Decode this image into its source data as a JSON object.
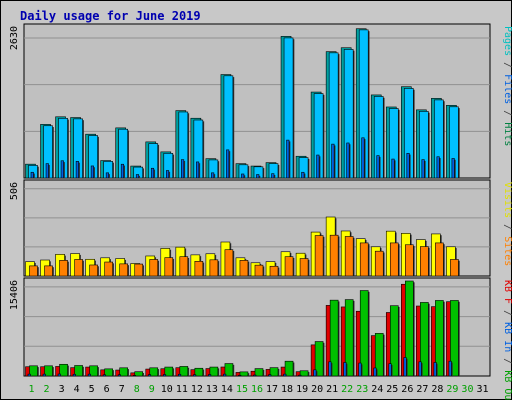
{
  "chart_data": {
    "type": "bar",
    "title": "Daily usage for June 2019",
    "days": [
      "1",
      "2",
      "3",
      "4",
      "5",
      "6",
      "7",
      "8",
      "9",
      "10",
      "11",
      "12",
      "13",
      "14",
      "15",
      "16",
      "17",
      "18",
      "19",
      "20",
      "21",
      "22",
      "23",
      "24",
      "25",
      "26",
      "27",
      "28",
      "29",
      "30",
      "31"
    ],
    "weekend_days": [
      "1",
      "2",
      "8",
      "9",
      "15",
      "16",
      "22",
      "23",
      "29",
      "30"
    ],
    "panels": [
      {
        "id": "hits-files-pages",
        "ymax": 2630,
        "ymax_label": "2630",
        "legend": [
          {
            "text": "Pages",
            "color": "#00c0c0"
          },
          {
            "text": " / ",
            "color": "#404040"
          },
          {
            "text": "Files",
            "color": "#0060e0"
          },
          {
            "text": " / ",
            "color": "#404040"
          },
          {
            "text": "Hits",
            "color": "#008040"
          }
        ],
        "series": [
          {
            "name": "Hits",
            "color": "#00a0a0",
            "values": [
              241,
              934,
              1066,
              1053,
              763,
              304,
              873,
              208,
              629,
              455,
              1174,
              1041,
              337,
              1802,
              250,
              208,
              268,
              2467,
              379,
              1497,
              2201,
              2269,
              2600,
              1447,
              1237,
              1590,
              1187,
              1387,
              1266,
              0,
              0
            ]
          },
          {
            "name": "Files",
            "color": "#0060e0",
            "values": [
              100,
              250,
              300,
              290,
              210,
              90,
              240,
              60,
              170,
              130,
              320,
              280,
              90,
              490,
              70,
              60,
              75,
              660,
              100,
              400,
              590,
              610,
              700,
              390,
              330,
              430,
              320,
              370,
              340,
              0,
              0
            ]
          },
          {
            "name": "Pages",
            "color": "#00c0ff",
            "values": [
              220,
              910,
              1040,
              1030,
              740,
              290,
              850,
              190,
              600,
              430,
              1150,
              1010,
              315,
              1780,
              230,
              195,
              250,
              2440,
              355,
              1470,
              2180,
              2240,
              2580,
              1420,
              1210,
              1560,
              1160,
              1360,
              1240,
              0,
              0
            ]
          }
        ]
      },
      {
        "id": "visits-sites",
        "ymax": 506,
        "ymax_label": "506",
        "legend": [
          {
            "text": "Visits",
            "color": "#e0e000"
          },
          {
            "text": " / ",
            "color": "#404040"
          },
          {
            "text": "Sites",
            "color": "#ff8000"
          }
        ],
        "series": [
          {
            "name": "Visits",
            "color": "#ffff00",
            "values": [
              78,
              87,
              118,
              122,
              91,
              99,
              95,
              68,
              109,
              150,
              157,
              115,
              121,
              185,
              99,
              72,
              78,
              132,
              124,
              239,
              321,
              245,
              203,
              159,
              244,
              232,
              198,
              229,
              159,
              0,
              0
            ]
          },
          {
            "name": "Sites",
            "color": "#ff8000",
            "values": [
              55,
              55,
              85,
              90,
              60,
              76,
              66,
              65,
              90,
              100,
              105,
              80,
              88,
              143,
              85,
              59,
              53,
              105,
              95,
              220,
              222,
              215,
              180,
              135,
              180,
              170,
              160,
              180,
              90,
              0,
              0
            ]
          }
        ]
      },
      {
        "id": "kbytes",
        "ymax": 15406,
        "ymax_label": "15406",
        "legend": [
          {
            "text": "KB F",
            "color": "#e00000"
          },
          {
            "text": " / ",
            "color": "#404040"
          },
          {
            "text": "KB In",
            "color": "#0060e0"
          },
          {
            "text": " / ",
            "color": "#404040"
          },
          {
            "text": "KB Out",
            "color": "#00a000"
          }
        ],
        "series": [
          {
            "name": "KB F",
            "color": "#e00000",
            "values": [
              1503,
              1503,
              1550,
              1360,
              1450,
              1000,
              966,
              510,
              1124,
              1180,
              1350,
              1030,
              1210,
              1460,
              580,
              775,
              1070,
              1450,
              700,
              5050,
              11450,
              11200,
              10500,
              6550,
              10300,
              14880,
              11350,
              11250,
              12050,
              0,
              0
            ]
          },
          {
            "name": "KB In",
            "color": "#0060e0",
            "values": [
              300,
              300,
              320,
              280,
              300,
              200,
              200,
              100,
              220,
              240,
              280,
              210,
              240,
              300,
              120,
              160,
              220,
              300,
              140,
              1000,
              2300,
              2200,
              2100,
              1300,
              2000,
              3000,
              2300,
              2200,
              2400,
              0,
              0
            ]
          },
          {
            "name": "KB Out",
            "color": "#00c000",
            "values": [
              1654,
              1654,
              1900,
              1703,
              1654,
              1160,
              1330,
              700,
              1330,
              1450,
              1550,
              1260,
              1450,
              2020,
              670,
              1200,
              1354,
              2400,
              850,
              5590,
              12300,
              12390,
              13860,
              6910,
              11400,
              15406,
              11930,
              12250,
              12250,
              0,
              0
            ]
          }
        ]
      }
    ]
  }
}
